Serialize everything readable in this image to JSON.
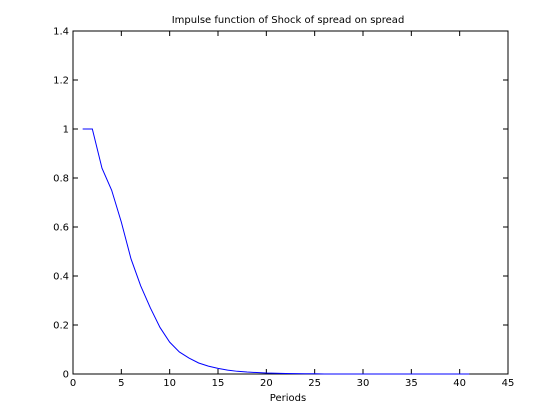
{
  "chart_data": {
    "type": "line",
    "title": "Impulse function of Shock of spread on spread",
    "xlabel": "Periods",
    "ylabel": "",
    "xlim": [
      0,
      45
    ],
    "ylim": [
      0,
      1.4
    ],
    "xticks": [
      0,
      5,
      10,
      15,
      20,
      25,
      30,
      35,
      40,
      45
    ],
    "yticks": [
      0,
      0.2,
      0.4,
      0.6,
      0.8,
      1,
      1.2,
      1.4
    ],
    "grid": false,
    "series": [
      {
        "color": "#0000ff",
        "x": [
          1,
          2,
          3,
          4,
          5,
          6,
          7,
          8,
          9,
          10,
          11,
          12,
          13,
          14,
          15,
          16,
          17,
          18,
          19,
          20,
          21,
          22,
          23,
          24,
          25,
          26,
          27,
          28,
          29,
          30,
          31,
          32,
          33,
          34,
          35,
          36,
          37,
          38,
          39,
          40,
          41
        ],
        "y": [
          1,
          1,
          0.84,
          0.75,
          0.62,
          0.47,
          0.36,
          0.27,
          0.19,
          0.13,
          0.09,
          0.065,
          0.045,
          0.032,
          0.023,
          0.016,
          0.011,
          0.008,
          0.006,
          0.004,
          0.003,
          0.002,
          0.0015,
          0.001,
          0.001,
          0,
          0,
          0,
          0,
          0,
          0,
          0,
          0,
          0,
          0,
          0,
          0,
          0,
          0,
          0,
          0
        ]
      }
    ]
  }
}
